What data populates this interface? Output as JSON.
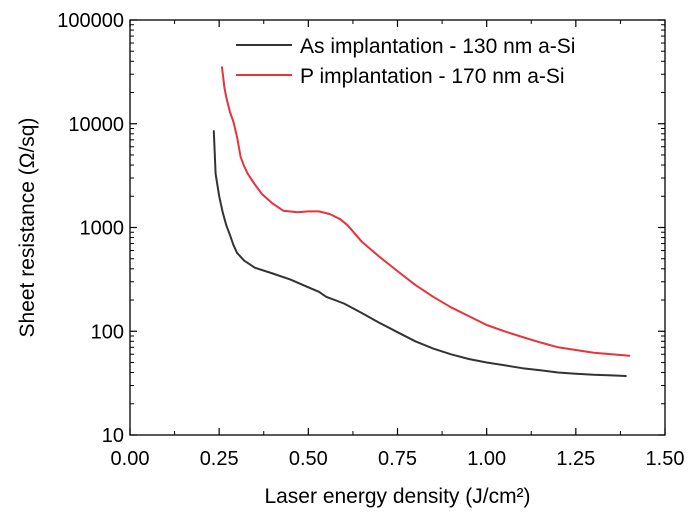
{
  "chart_data": {
    "type": "line",
    "xlabel": "Laser energy density (J/cm²)",
    "ylabel": "Sheet resistance (Ω/sq)",
    "xlim": [
      0.0,
      1.5
    ],
    "ylim": [
      10,
      100000
    ],
    "yscale": "log",
    "xticks": [
      "0.00",
      "0.25",
      "0.50",
      "0.75",
      "1.00",
      "1.25",
      "1.50"
    ],
    "yticks": [
      "10",
      "100",
      "1000",
      "10000",
      "100000"
    ],
    "legend_position": "top-right",
    "grid": false,
    "series": [
      {
        "name": "As implantation - 130 nm a-Si",
        "color": "#333333",
        "x": [
          0.235,
          0.24,
          0.25,
          0.26,
          0.27,
          0.28,
          0.29,
          0.3,
          0.32,
          0.35,
          0.4,
          0.45,
          0.5,
          0.53,
          0.55,
          0.6,
          0.65,
          0.7,
          0.75,
          0.8,
          0.85,
          0.9,
          0.95,
          1.0,
          1.05,
          1.1,
          1.15,
          1.2,
          1.25,
          1.3,
          1.35,
          1.39
        ],
        "y": [
          8500,
          3300,
          2000,
          1400,
          1050,
          850,
          680,
          570,
          480,
          410,
          360,
          315,
          265,
          240,
          215,
          185,
          150,
          120,
          98,
          80,
          68,
          60,
          54,
          50,
          47,
          44,
          42,
          40,
          39,
          38,
          37.5,
          37
        ]
      },
      {
        "name": "P implantation - 170 nm a-Si",
        "color": "#e8323c",
        "x": [
          0.258,
          0.265,
          0.27,
          0.28,
          0.29,
          0.3,
          0.31,
          0.32,
          0.33,
          0.35,
          0.37,
          0.4,
          0.43,
          0.47,
          0.5,
          0.53,
          0.56,
          0.59,
          0.61,
          0.65,
          0.7,
          0.75,
          0.8,
          0.85,
          0.9,
          0.95,
          1.0,
          1.05,
          1.1,
          1.15,
          1.2,
          1.25,
          1.3,
          1.35,
          1.4
        ],
        "y": [
          35000,
          22000,
          18000,
          13000,
          10500,
          7500,
          4800,
          3900,
          3300,
          2600,
          2100,
          1700,
          1450,
          1400,
          1430,
          1430,
          1350,
          1200,
          1050,
          730,
          520,
          380,
          280,
          215,
          170,
          140,
          115,
          100,
          88,
          78,
          70,
          66,
          62,
          60,
          58
        ]
      }
    ]
  }
}
